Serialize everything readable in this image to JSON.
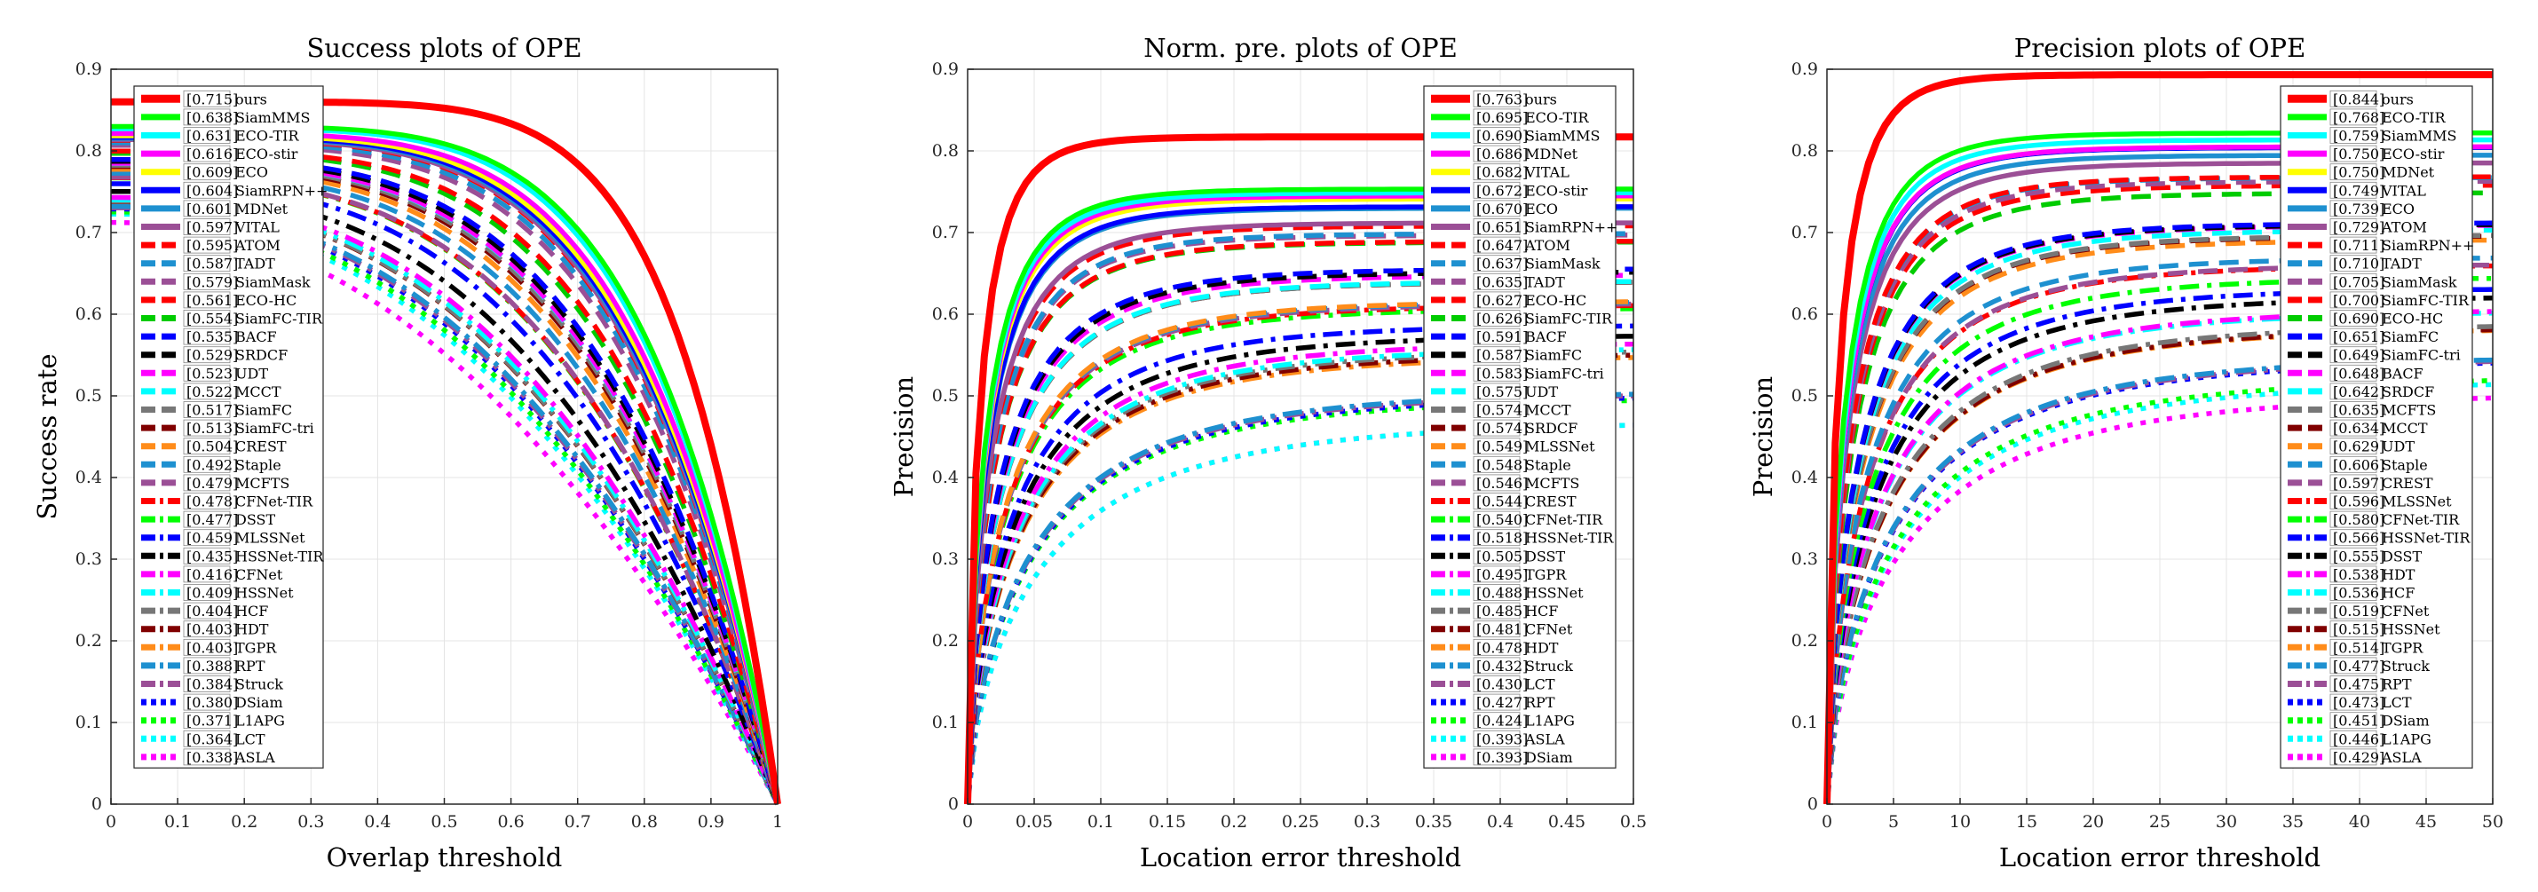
{
  "chart_data": [
    {
      "type": "line",
      "title": "Success plots of OPE",
      "xlabel": "Overlap threshold",
      "ylabel": "Success rate",
      "xlim": [
        0,
        1
      ],
      "ylim": [
        0,
        0.9
      ],
      "xticks": [
        "0",
        "0.1",
        "0.2",
        "0.3",
        "0.4",
        "0.5",
        "0.6",
        "0.7",
        "0.8",
        "0.9",
        "1"
      ],
      "yticks": [
        "0",
        "0.1",
        "0.2",
        "0.3",
        "0.4",
        "0.5",
        "0.6",
        "0.7",
        "0.8",
        "0.9"
      ],
      "grid": true,
      "legend_position": "top-left",
      "series": [
        {
          "name": "ours",
          "score": "0.715"
        },
        {
          "name": "SiamMMS",
          "score": "0.638"
        },
        {
          "name": "ECO-TIR",
          "score": "0.631"
        },
        {
          "name": "ECO-stir",
          "score": "0.616"
        },
        {
          "name": "ECO",
          "score": "0.609"
        },
        {
          "name": "SiamRPN++",
          "score": "0.604"
        },
        {
          "name": "MDNet",
          "score": "0.601"
        },
        {
          "name": "VITAL",
          "score": "0.597"
        },
        {
          "name": "ATOM",
          "score": "0.595"
        },
        {
          "name": "TADT",
          "score": "0.587"
        },
        {
          "name": "SiamMask",
          "score": "0.579"
        },
        {
          "name": "ECO-HC",
          "score": "0.561"
        },
        {
          "name": "SiamFC-TIR",
          "score": "0.554"
        },
        {
          "name": "BACF",
          "score": "0.535"
        },
        {
          "name": "SRDCF",
          "score": "0.529"
        },
        {
          "name": "UDT",
          "score": "0.523"
        },
        {
          "name": "MCCT",
          "score": "0.522"
        },
        {
          "name": "SiamFC",
          "score": "0.517"
        },
        {
          "name": "SiamFC-tri",
          "score": "0.513"
        },
        {
          "name": "CREST",
          "score": "0.504"
        },
        {
          "name": "Staple",
          "score": "0.492"
        },
        {
          "name": "MCFTS",
          "score": "0.479"
        },
        {
          "name": "CFNet-TIR",
          "score": "0.478"
        },
        {
          "name": "DSST",
          "score": "0.477"
        },
        {
          "name": "MLSSNet",
          "score": "0.459"
        },
        {
          "name": "HSSNet-TIR",
          "score": "0.435"
        },
        {
          "name": "CFNet",
          "score": "0.416"
        },
        {
          "name": "HSSNet",
          "score": "0.409"
        },
        {
          "name": "HCF",
          "score": "0.404"
        },
        {
          "name": "HDT",
          "score": "0.403"
        },
        {
          "name": "TGPR",
          "score": "0.403"
        },
        {
          "name": "RPT",
          "score": "0.388"
        },
        {
          "name": "Struck",
          "score": "0.384"
        },
        {
          "name": "DSiam",
          "score": "0.380"
        },
        {
          "name": "L1APG",
          "score": "0.371"
        },
        {
          "name": "LCT",
          "score": "0.364"
        },
        {
          "name": "ASLA",
          "score": "0.338"
        }
      ]
    },
    {
      "type": "line",
      "title": "Norm. pre. plots of OPE",
      "xlabel": "Location error threshold",
      "ylabel": "Precision",
      "xlim": [
        0,
        0.5
      ],
      "ylim": [
        0,
        0.9
      ],
      "xticks": [
        "0",
        "0.05",
        "0.1",
        "0.15",
        "0.2",
        "0.25",
        "0.3",
        "0.35",
        "0.4",
        "0.45",
        "0.5"
      ],
      "yticks": [
        "0",
        "0.1",
        "0.2",
        "0.3",
        "0.4",
        "0.5",
        "0.6",
        "0.7",
        "0.8",
        "0.9"
      ],
      "grid": true,
      "legend_position": "top-right",
      "series": [
        {
          "name": "ours",
          "score": "0.763"
        },
        {
          "name": "ECO-TIR",
          "score": "0.695"
        },
        {
          "name": "SiamMMS",
          "score": "0.690"
        },
        {
          "name": "MDNet",
          "score": "0.686"
        },
        {
          "name": "VITAL",
          "score": "0.682"
        },
        {
          "name": "ECO-stir",
          "score": "0.672"
        },
        {
          "name": "ECO",
          "score": "0.670"
        },
        {
          "name": "SiamRPN++",
          "score": "0.651"
        },
        {
          "name": "ATOM",
          "score": "0.647"
        },
        {
          "name": "SiamMask",
          "score": "0.637"
        },
        {
          "name": "TADT",
          "score": "0.635"
        },
        {
          "name": "ECO-HC",
          "score": "0.627"
        },
        {
          "name": "SiamFC-TIR",
          "score": "0.626"
        },
        {
          "name": "BACF",
          "score": "0.591"
        },
        {
          "name": "SiamFC",
          "score": "0.587"
        },
        {
          "name": "SiamFC-tri",
          "score": "0.583"
        },
        {
          "name": "UDT",
          "score": "0.575"
        },
        {
          "name": "MCCT",
          "score": "0.574"
        },
        {
          "name": "SRDCF",
          "score": "0.574"
        },
        {
          "name": "MLSSNet",
          "score": "0.549"
        },
        {
          "name": "Staple",
          "score": "0.548"
        },
        {
          "name": "MCFTS",
          "score": "0.546"
        },
        {
          "name": "CREST",
          "score": "0.544"
        },
        {
          "name": "CFNet-TIR",
          "score": "0.540"
        },
        {
          "name": "HSSNet-TIR",
          "score": "0.518"
        },
        {
          "name": "DSST",
          "score": "0.505"
        },
        {
          "name": "TGPR",
          "score": "0.495"
        },
        {
          "name": "HSSNet",
          "score": "0.488"
        },
        {
          "name": "HCF",
          "score": "0.485"
        },
        {
          "name": "CFNet",
          "score": "0.481"
        },
        {
          "name": "HDT",
          "score": "0.478"
        },
        {
          "name": "Struck",
          "score": "0.432"
        },
        {
          "name": "LCT",
          "score": "0.430"
        },
        {
          "name": "RPT",
          "score": "0.427"
        },
        {
          "name": "L1APG",
          "score": "0.424"
        },
        {
          "name": "ASLA",
          "score": "0.393"
        },
        {
          "name": "DSiam",
          "score": "0.393"
        }
      ]
    },
    {
      "type": "line",
      "title": "Precision plots of OPE",
      "xlabel": "Location error threshold",
      "ylabel": "Precision",
      "xlim": [
        0,
        50
      ],
      "ylim": [
        0,
        0.9
      ],
      "xticks": [
        "0",
        "5",
        "10",
        "15",
        "20",
        "25",
        "30",
        "35",
        "40",
        "45",
        "50"
      ],
      "yticks": [
        "0",
        "0.1",
        "0.2",
        "0.3",
        "0.4",
        "0.5",
        "0.6",
        "0.7",
        "0.8",
        "0.9"
      ],
      "grid": true,
      "legend_position": "top-right",
      "series": [
        {
          "name": "ours",
          "score": "0.844"
        },
        {
          "name": "ECO-TIR",
          "score": "0.768"
        },
        {
          "name": "SiamMMS",
          "score": "0.759"
        },
        {
          "name": "ECO-stir",
          "score": "0.750"
        },
        {
          "name": "MDNet",
          "score": "0.750"
        },
        {
          "name": "VITAL",
          "score": "0.749"
        },
        {
          "name": "ECO",
          "score": "0.739"
        },
        {
          "name": "ATOM",
          "score": "0.729"
        },
        {
          "name": "SiamRPN++",
          "score": "0.711"
        },
        {
          "name": "TADT",
          "score": "0.710"
        },
        {
          "name": "SiamMask",
          "score": "0.705"
        },
        {
          "name": "SiamFC-TIR",
          "score": "0.700"
        },
        {
          "name": "ECO-HC",
          "score": "0.690"
        },
        {
          "name": "SiamFC",
          "score": "0.651"
        },
        {
          "name": "SiamFC-tri",
          "score": "0.649"
        },
        {
          "name": "BACF",
          "score": "0.648"
        },
        {
          "name": "SRDCF",
          "score": "0.642"
        },
        {
          "name": "MCFTS",
          "score": "0.635"
        },
        {
          "name": "MCCT",
          "score": "0.634"
        },
        {
          "name": "UDT",
          "score": "0.629"
        },
        {
          "name": "Staple",
          "score": "0.606"
        },
        {
          "name": "CREST",
          "score": "0.597"
        },
        {
          "name": "MLSSNet",
          "score": "0.596"
        },
        {
          "name": "CFNet-TIR",
          "score": "0.580"
        },
        {
          "name": "HSSNet-TIR",
          "score": "0.566"
        },
        {
          "name": "DSST",
          "score": "0.555"
        },
        {
          "name": "HDT",
          "score": "0.538"
        },
        {
          "name": "HCF",
          "score": "0.536"
        },
        {
          "name": "CFNet",
          "score": "0.519"
        },
        {
          "name": "HSSNet",
          "score": "0.515"
        },
        {
          "name": "TGPR",
          "score": "0.514"
        },
        {
          "name": "Struck",
          "score": "0.477"
        },
        {
          "name": "RPT",
          "score": "0.475"
        },
        {
          "name": "LCT",
          "score": "0.473"
        },
        {
          "name": "DSiam",
          "score": "0.451"
        },
        {
          "name": "L1APG",
          "score": "0.446"
        },
        {
          "name": "ASLA",
          "score": "0.429"
        }
      ]
    }
  ],
  "line_styles": [
    {
      "color": "#ff0000",
      "dash": "solid"
    },
    {
      "color": "#00ff00",
      "dash": "solid"
    },
    {
      "color": "#00ffff",
      "dash": "solid"
    },
    {
      "color": "#ff00ff",
      "dash": "solid"
    },
    {
      "color": "#ffff00",
      "dash": "solid"
    },
    {
      "color": "#0000ff",
      "dash": "solid"
    },
    {
      "color": "#1e90d0",
      "dash": "solid"
    },
    {
      "color": "#9b4f96",
      "dash": "solid"
    },
    {
      "color": "#ff0000",
      "dash": "dashed"
    },
    {
      "color": "#1e90d0",
      "dash": "dashed"
    },
    {
      "color": "#9b4f96",
      "dash": "dashed"
    },
    {
      "color": "#ff0000",
      "dash": "dashed"
    },
    {
      "color": "#00cc00",
      "dash": "dashed"
    },
    {
      "color": "#0000ff",
      "dash": "dashed"
    },
    {
      "color": "#000000",
      "dash": "dashed"
    },
    {
      "color": "#ff00ff",
      "dash": "dashed"
    },
    {
      "color": "#00ffff",
      "dash": "dashed"
    },
    {
      "color": "#777777",
      "dash": "dashed"
    },
    {
      "color": "#800000",
      "dash": "dashed"
    },
    {
      "color": "#ff8c1a",
      "dash": "dashed"
    },
    {
      "color": "#1e90d0",
      "dash": "dashed"
    },
    {
      "color": "#9b4f96",
      "dash": "dashed"
    },
    {
      "color": "#ff0000",
      "dash": "dashdot"
    },
    {
      "color": "#00ff00",
      "dash": "dashdot"
    },
    {
      "color": "#0000ff",
      "dash": "dashdot"
    },
    {
      "color": "#000000",
      "dash": "dashdot"
    },
    {
      "color": "#ff00ff",
      "dash": "dashdot"
    },
    {
      "color": "#00ffff",
      "dash": "dashdot"
    },
    {
      "color": "#777777",
      "dash": "dashdot"
    },
    {
      "color": "#800000",
      "dash": "dashdot"
    },
    {
      "color": "#ff8c1a",
      "dash": "dashdot"
    },
    {
      "color": "#1e90d0",
      "dash": "dashdot"
    },
    {
      "color": "#9b4f96",
      "dash": "dashdot"
    },
    {
      "color": "#0000ff",
      "dash": "dotted"
    },
    {
      "color": "#00ff00",
      "dash": "dotted"
    },
    {
      "color": "#00ffff",
      "dash": "dotted"
    },
    {
      "color": "#ff00ff",
      "dash": "dotted"
    }
  ]
}
